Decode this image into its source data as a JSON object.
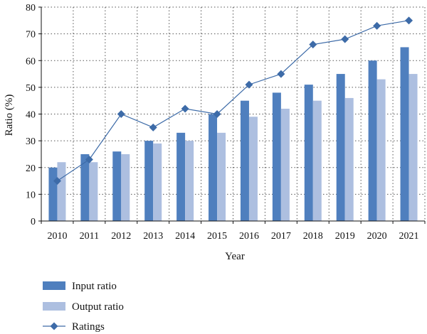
{
  "chart_data": {
    "type": "bar",
    "categories": [
      "2010",
      "2011",
      "2012",
      "2013",
      "2014",
      "2015",
      "2016",
      "2017",
      "2018",
      "2019",
      "2020",
      "2021"
    ],
    "series": [
      {
        "name": "Input ratio",
        "kind": "bar",
        "color": "#4f7fbe",
        "values": [
          20,
          25,
          26,
          30,
          33,
          40,
          45,
          48,
          51,
          55,
          60,
          65
        ]
      },
      {
        "name": "Output ratio",
        "kind": "bar",
        "color": "#adbfe0",
        "values": [
          22,
          22,
          25,
          29,
          30,
          33,
          39,
          42,
          45,
          46,
          53,
          55
        ]
      },
      {
        "name": "Ratings",
        "kind": "line",
        "color": "#3d6ba8",
        "marker": "diamond",
        "values": [
          15,
          23,
          40,
          35,
          42,
          40,
          51,
          55,
          66,
          68,
          73,
          75
        ]
      }
    ],
    "xlabel": "Year",
    "ylabel": "Ratio (%)",
    "ylim": [
      0,
      80
    ],
    "yticks": [
      0,
      10,
      20,
      30,
      40,
      50,
      60,
      70,
      80
    ],
    "grid": "horizontal dotted",
    "legend": "bottom-left"
  }
}
